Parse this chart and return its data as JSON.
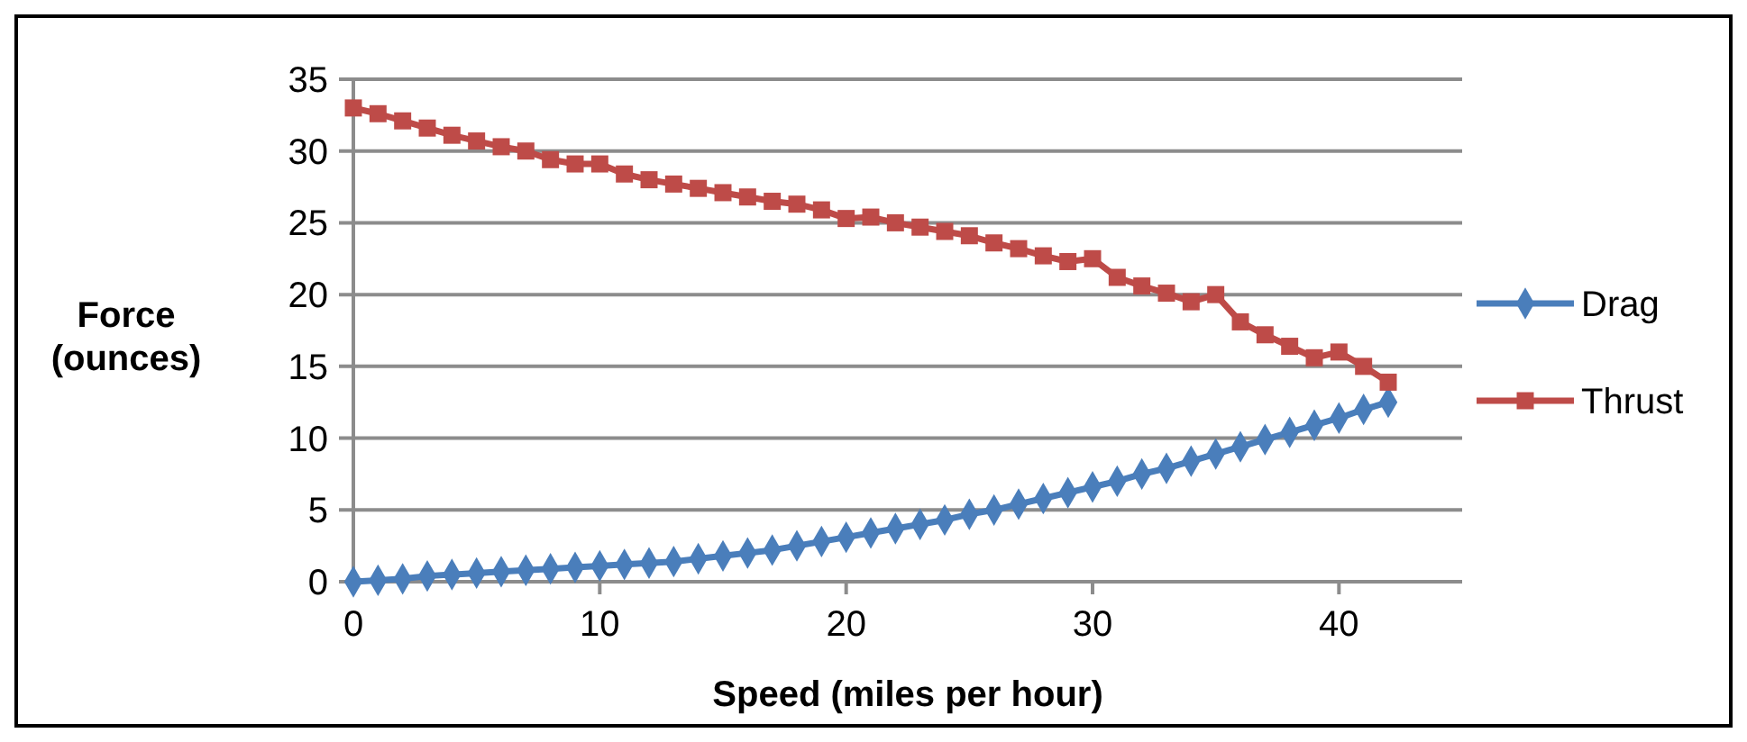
{
  "chart_data": {
    "type": "line",
    "xlabel": "Speed (miles per hour)",
    "ylabel": "Force (ounces)",
    "x": [
      0,
      1,
      2,
      3,
      4,
      5,
      6,
      7,
      8,
      9,
      10,
      11,
      12,
      13,
      14,
      15,
      16,
      17,
      18,
      19,
      20,
      21,
      22,
      23,
      24,
      25,
      26,
      27,
      28,
      29,
      30,
      31,
      32,
      33,
      34,
      35,
      36,
      37,
      38,
      39,
      40,
      41,
      42
    ],
    "xlim": [
      0,
      45
    ],
    "xticks": [
      0,
      10,
      20,
      30,
      40
    ],
    "ylim": [
      0,
      35
    ],
    "yticks": [
      0,
      5,
      10,
      15,
      20,
      25,
      30,
      35
    ],
    "grid": "y",
    "legend": "right",
    "series": [
      {
        "name": "Drag",
        "color": "#4a7ebb",
        "marker": "diamond",
        "values": [
          0,
          0.1,
          0.2,
          0.4,
          0.5,
          0.6,
          0.7,
          0.8,
          0.9,
          1.0,
          1.1,
          1.2,
          1.3,
          1.4,
          1.6,
          1.8,
          2.0,
          2.2,
          2.5,
          2.8,
          3.1,
          3.4,
          3.7,
          4.0,
          4.3,
          4.7,
          5.0,
          5.4,
          5.8,
          6.2,
          6.6,
          7.0,
          7.5,
          7.9,
          8.4,
          8.9,
          9.4,
          9.9,
          10.4,
          10.9,
          11.4,
          12.0,
          12.5
        ]
      },
      {
        "name": "Thrust",
        "color": "#be4b48",
        "marker": "square",
        "values": [
          33,
          32.6,
          32.1,
          31.6,
          31.1,
          30.7,
          30.3,
          30.0,
          29.4,
          29.1,
          29.1,
          28.4,
          28.0,
          27.7,
          27.4,
          27.1,
          26.8,
          26.5,
          26.3,
          25.9,
          25.3,
          25.4,
          25.0,
          24.7,
          24.4,
          24.1,
          23.6,
          23.2,
          22.7,
          22.3,
          22.5,
          21.2,
          20.6,
          20.1,
          19.5,
          20.0,
          18.1,
          17.2,
          16.4,
          15.6,
          16.0,
          15.0,
          13.9
        ]
      }
    ]
  }
}
